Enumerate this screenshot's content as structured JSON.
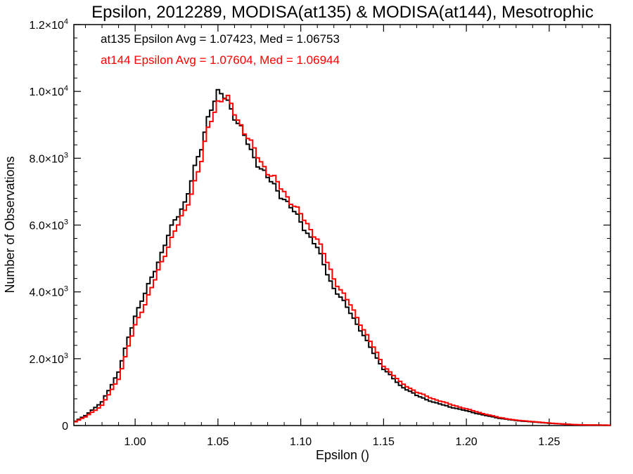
{
  "chart_data": {
    "type": "line",
    "title": "Epsilon, 2012289, MODISA(at135) & MODISA(at144), Mesotrophic",
    "xlabel": "Epsilon ()",
    "ylabel": "Number of Observations",
    "xlim": [
      0.963,
      1.287
    ],
    "ylim": [
      0,
      12000
    ],
    "grid": false,
    "x_ticks": [
      "1.00",
      "1.05",
      "1.10",
      "1.15",
      "1.20",
      "1.25"
    ],
    "x_tick_values": [
      1.0,
      1.05,
      1.1,
      1.15,
      1.2,
      1.25
    ],
    "y_ticks": [
      {
        "mant": "0",
        "exp": ""
      },
      {
        "mant": "2.0×10",
        "exp": "3"
      },
      {
        "mant": "4.0×10",
        "exp": "3"
      },
      {
        "mant": "6.0×10",
        "exp": "3"
      },
      {
        "mant": "8.0×10",
        "exp": "3"
      },
      {
        "mant": "1.0×10",
        "exp": "4"
      },
      {
        "mant": "1.2×10",
        "exp": "4"
      }
    ],
    "y_tick_values": [
      0,
      2000,
      4000,
      6000,
      8000,
      10000,
      12000
    ],
    "annotations": [
      {
        "text": "at135 Epsilon Avg = 1.07423, Med = 1.06753",
        "color": "#000000"
      },
      {
        "text": "at144 Epsilon Avg = 1.07604, Med = 1.06944",
        "color": "#ff0000"
      }
    ],
    "x": [
      0.963,
      0.97,
      0.98,
      0.99,
      1.0,
      1.01,
      1.02,
      1.03,
      1.04,
      1.045,
      1.05,
      1.055,
      1.06,
      1.07,
      1.08,
      1.09,
      1.1,
      1.11,
      1.12,
      1.13,
      1.14,
      1.15,
      1.16,
      1.17,
      1.18,
      1.19,
      1.2,
      1.21,
      1.22,
      1.23,
      1.24,
      1.25,
      1.26,
      1.27,
      1.287
    ],
    "series": [
      {
        "color": "#000000",
        "values": [
          100,
          300,
          700,
          1600,
          3300,
          4400,
          5700,
          6700,
          8300,
          9500,
          9900,
          9800,
          9300,
          8200,
          7400,
          6800,
          6100,
          5300,
          4100,
          3400,
          2500,
          1700,
          1200,
          900,
          700,
          560,
          440,
          320,
          220,
          150,
          110,
          70,
          40,
          20,
          10
        ]
      },
      {
        "color": "#ff0000",
        "values": [
          90,
          260,
          600,
          1400,
          3000,
          4100,
          5400,
          6400,
          7900,
          9100,
          9700,
          9800,
          9400,
          8400,
          7600,
          7000,
          6300,
          5600,
          4400,
          3600,
          2700,
          1800,
          1300,
          1000,
          800,
          640,
          500,
          360,
          240,
          160,
          120,
          75,
          40,
          20,
          10
        ]
      }
    ]
  }
}
